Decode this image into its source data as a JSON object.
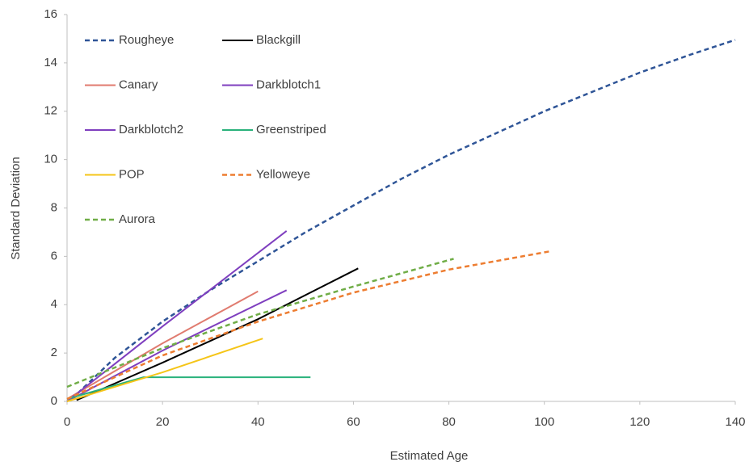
{
  "chart_data": {
    "type": "line",
    "xlabel": "Estimated Age",
    "ylabel": "Standard Deviation",
    "xlim": [
      0,
      140
    ],
    "xticks": [
      0,
      20,
      40,
      60,
      80,
      100,
      120,
      140
    ],
    "ylim": [
      0,
      16
    ],
    "yticks": [
      0,
      2,
      4,
      6,
      8,
      10,
      12,
      14,
      16
    ],
    "grid": false,
    "legend": "upper left",
    "series": [
      {
        "name": "Rougheye",
        "color": "#2f5597",
        "dashed": true,
        "x": [
          1,
          10,
          20,
          30,
          40,
          50,
          60,
          70,
          80,
          90,
          100,
          110,
          120,
          130,
          140
        ],
        "values": [
          0.1,
          1.8,
          3.3,
          4.6,
          5.8,
          7.0,
          8.1,
          9.2,
          10.2,
          11.1,
          12.0,
          12.8,
          13.6,
          14.3,
          14.95
        ]
      },
      {
        "name": "Blackgill",
        "color": "#000000",
        "dashed": false,
        "x": [
          2,
          20,
          40,
          61
        ],
        "values": [
          0.05,
          1.6,
          3.4,
          5.5
        ]
      },
      {
        "name": "Canary",
        "color": "#e07b6f",
        "dashed": false,
        "x": [
          0,
          20,
          40
        ],
        "values": [
          0.1,
          2.4,
          4.55
        ]
      },
      {
        "name": "Darkblotch1",
        "color": "#7f3fbf",
        "dashed": false,
        "x": [
          0,
          20,
          46
        ],
        "values": [
          0,
          3.1,
          7.05
        ]
      },
      {
        "name": "Darkblotch2",
        "color": "#7f3fbf",
        "dashed": false,
        "x": [
          0,
          20,
          46
        ],
        "values": [
          0,
          2.1,
          4.6
        ]
      },
      {
        "name": "Greenstriped",
        "color": "#2ab27b",
        "dashed": false,
        "x": [
          0,
          16,
          51
        ],
        "values": [
          0.1,
          1.0,
          1.0
        ]
      },
      {
        "name": "POP",
        "color": "#f5c518",
        "dashed": false,
        "x": [
          0,
          20,
          41
        ],
        "values": [
          0,
          1.2,
          2.6
        ]
      },
      {
        "name": "Yelloweye",
        "color": "#ed7d31",
        "dashed": true,
        "x": [
          0,
          20,
          40,
          60,
          80,
          101
        ],
        "values": [
          0.1,
          1.9,
          3.3,
          4.5,
          5.45,
          6.2
        ]
      },
      {
        "name": "Aurora",
        "color": "#70ad47",
        "dashed": true,
        "x": [
          0,
          10,
          20,
          40,
          60,
          81
        ],
        "values": [
          0.6,
          1.4,
          2.2,
          3.6,
          4.75,
          5.9
        ]
      }
    ]
  }
}
